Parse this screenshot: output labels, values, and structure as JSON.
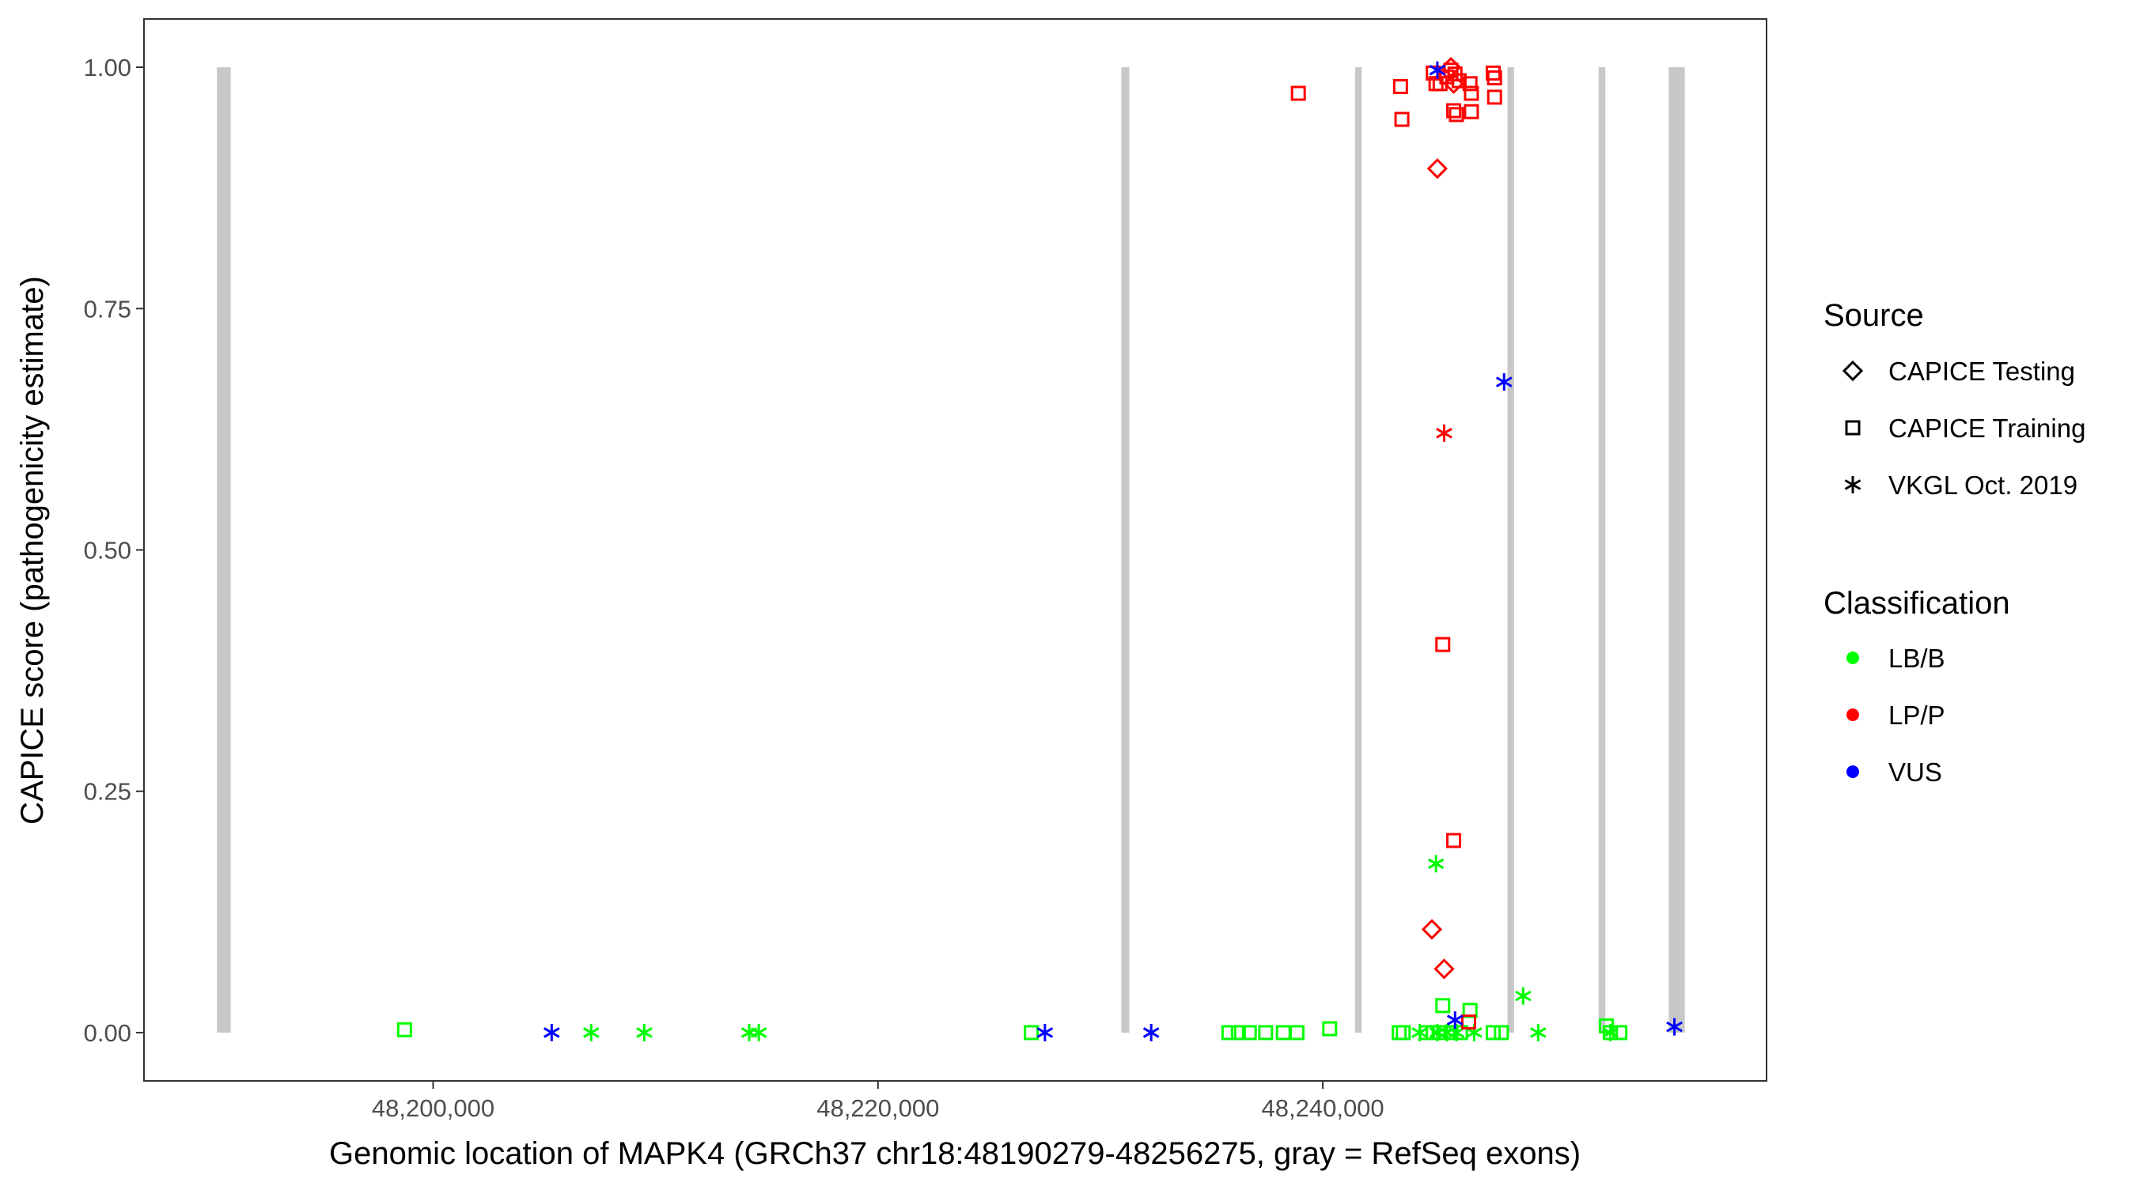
{
  "chart_data": {
    "type": "scatter",
    "xlabel": "Genomic location of MAPK4 (GRCh37 chr18:48190279-48256275, gray = RefSeq exons)",
    "ylabel": "CAPICE score (pathogenicity estimate)",
    "xlim": [
      48187000,
      48259950
    ],
    "ylim": [
      -0.05,
      1.05
    ],
    "x_ticks": [
      48200000,
      48220000,
      48240000
    ],
    "x_tick_labels": [
      "48,200,000",
      "48,220,000",
      "48,240,000"
    ],
    "y_ticks": [
      0,
      0.25,
      0.5,
      0.75,
      1.0
    ],
    "y_tick_labels": [
      "0.00",
      "0.25",
      "0.50",
      "0.75",
      "1.00"
    ],
    "grid": false,
    "exons": [
      [
        48190279,
        48190900
      ],
      [
        48230940,
        48231300
      ],
      [
        48241450,
        48241750
      ],
      [
        48248300,
        48248600
      ],
      [
        48252400,
        48252700
      ],
      [
        48255550,
        48256275
      ]
    ],
    "exon_color": "#C8C8C8",
    "legend": {
      "placement": "right",
      "source_title": "Source",
      "source_items": [
        {
          "label": "CAPICE Testing",
          "shape": "diamond"
        },
        {
          "label": "CAPICE Training",
          "shape": "square"
        },
        {
          "label": "VKGL Oct. 2019",
          "shape": "asterisk"
        }
      ],
      "class_title": "Classification",
      "class_items": [
        {
          "label": "LB/B",
          "color": "#00FF00"
        },
        {
          "label": "LP/P",
          "color": "#FF0000"
        },
        {
          "label": "VUS",
          "color": "#0000FF"
        }
      ]
    },
    "series": [
      {
        "name": "LB/B",
        "color": "#00FF00",
        "points": [
          {
            "x": 48198714,
            "y": 0.003,
            "source": "CAPICE Training"
          },
          {
            "x": 48226893,
            "y": 0.0,
            "source": "CAPICE Training"
          },
          {
            "x": 48235776,
            "y": 0.0,
            "source": "CAPICE Training"
          },
          {
            "x": 48236205,
            "y": 0.0,
            "source": "CAPICE Training"
          },
          {
            "x": 48236695,
            "y": 0.0,
            "source": "CAPICE Training"
          },
          {
            "x": 48237430,
            "y": 0.0,
            "source": "CAPICE Training"
          },
          {
            "x": 48238226,
            "y": 0.0,
            "source": "CAPICE Training"
          },
          {
            "x": 48238839,
            "y": 0.0,
            "source": "CAPICE Training"
          },
          {
            "x": 48240309,
            "y": 0.004,
            "source": "CAPICE Training"
          },
          {
            "x": 48243433,
            "y": 0.0,
            "source": "CAPICE Training"
          },
          {
            "x": 48243617,
            "y": 0.0,
            "source": "CAPICE Training"
          },
          {
            "x": 48244659,
            "y": 0.0,
            "source": "CAPICE Training"
          },
          {
            "x": 48244965,
            "y": 0.0,
            "source": "CAPICE Training"
          },
          {
            "x": 48245271,
            "y": 0.0,
            "source": "CAPICE Training"
          },
          {
            "x": 48245394,
            "y": 0.028,
            "source": "CAPICE Training"
          },
          {
            "x": 48245761,
            "y": 0.0,
            "source": "CAPICE Training"
          },
          {
            "x": 48246190,
            "y": 0.0,
            "source": "CAPICE Training"
          },
          {
            "x": 48246619,
            "y": 0.023,
            "source": "CAPICE Training"
          },
          {
            "x": 48247660,
            "y": 0.0,
            "source": "CAPICE Training"
          },
          {
            "x": 48248028,
            "y": 0.0,
            "source": "CAPICE Training"
          },
          {
            "x": 48252745,
            "y": 0.007,
            "source": "CAPICE Training"
          },
          {
            "x": 48252929,
            "y": 0.0,
            "source": "CAPICE Training"
          },
          {
            "x": 48253357,
            "y": 0.0,
            "source": "CAPICE Training"
          },
          {
            "x": 48207106,
            "y": 0.0,
            "source": "VKGL Oct. 2019"
          },
          {
            "x": 48209495,
            "y": 0.0,
            "source": "VKGL Oct. 2019"
          },
          {
            "x": 48214212,
            "y": 0.0,
            "source": "VKGL Oct. 2019"
          },
          {
            "x": 48214641,
            "y": 0.0,
            "source": "VKGL Oct. 2019"
          },
          {
            "x": 48244352,
            "y": 0.0,
            "source": "VKGL Oct. 2019"
          },
          {
            "x": 48245087,
            "y": 0.175,
            "source": "VKGL Oct. 2019"
          },
          {
            "x": 48245149,
            "y": 0.0,
            "source": "VKGL Oct. 2019"
          },
          {
            "x": 48245577,
            "y": 0.0,
            "source": "VKGL Oct. 2019"
          },
          {
            "x": 48246006,
            "y": 0.0,
            "source": "VKGL Oct. 2019"
          },
          {
            "x": 48246803,
            "y": 0.0,
            "source": "VKGL Oct. 2019"
          },
          {
            "x": 48249008,
            "y": 0.038,
            "source": "VKGL Oct. 2019"
          },
          {
            "x": 48249682,
            "y": 0.0,
            "source": "VKGL Oct. 2019"
          },
          {
            "x": 48252929,
            "y": 0.0,
            "source": "VKGL Oct. 2019"
          }
        ]
      },
      {
        "name": "LP/P",
        "color": "#FF0000",
        "points": [
          {
            "x": 48245149,
            "y": 0.895,
            "source": "CAPICE Testing"
          },
          {
            "x": 48244904,
            "y": 0.107,
            "source": "CAPICE Testing"
          },
          {
            "x": 48245455,
            "y": 0.066,
            "source": "CAPICE Testing"
          },
          {
            "x": 48245761,
            "y": 1.0,
            "source": "CAPICE Testing"
          },
          {
            "x": 48245884,
            "y": 0.983,
            "source": "CAPICE Testing"
          },
          {
            "x": 48238900,
            "y": 0.973,
            "source": "CAPICE Training"
          },
          {
            "x": 48243494,
            "y": 0.98,
            "source": "CAPICE Training"
          },
          {
            "x": 48243556,
            "y": 0.946,
            "source": "CAPICE Training"
          },
          {
            "x": 48245394,
            "y": 0.402,
            "source": "CAPICE Training"
          },
          {
            "x": 48245884,
            "y": 0.199,
            "source": "CAPICE Training"
          },
          {
            "x": 48246558,
            "y": 0.011,
            "source": "CAPICE Training"
          },
          {
            "x": 48244965,
            "y": 0.994,
            "source": "CAPICE Training"
          },
          {
            "x": 48245087,
            "y": 0.983,
            "source": "CAPICE Training"
          },
          {
            "x": 48245271,
            "y": 0.983,
            "source": "CAPICE Training"
          },
          {
            "x": 48245577,
            "y": 0.99,
            "source": "CAPICE Training"
          },
          {
            "x": 48245761,
            "y": 0.997,
            "source": "CAPICE Training"
          },
          {
            "x": 48245945,
            "y": 0.993,
            "source": "CAPICE Training"
          },
          {
            "x": 48246129,
            "y": 0.986,
            "source": "CAPICE Training"
          },
          {
            "x": 48245884,
            "y": 0.955,
            "source": "CAPICE Training"
          },
          {
            "x": 48246006,
            "y": 0.951,
            "source": "CAPICE Training"
          },
          {
            "x": 48246619,
            "y": 0.983,
            "source": "CAPICE Training"
          },
          {
            "x": 48246680,
            "y": 0.973,
            "source": "CAPICE Training"
          },
          {
            "x": 48246680,
            "y": 0.954,
            "source": "CAPICE Training"
          },
          {
            "x": 48247660,
            "y": 0.994,
            "source": "CAPICE Training"
          },
          {
            "x": 48247722,
            "y": 0.989,
            "source": "CAPICE Training"
          },
          {
            "x": 48247722,
            "y": 0.969,
            "source": "CAPICE Training"
          },
          {
            "x": 48245455,
            "y": 0.621,
            "source": "VKGL Oct. 2019"
          }
        ]
      },
      {
        "name": "VUS",
        "color": "#0000FF",
        "points": [
          {
            "x": 48205330,
            "y": 0.0,
            "source": "VKGL Oct. 2019"
          },
          {
            "x": 48227506,
            "y": 0.0,
            "source": "VKGL Oct. 2019"
          },
          {
            "x": 48232284,
            "y": 0.0,
            "source": "VKGL Oct. 2019"
          },
          {
            "x": 48245149,
            "y": 0.997,
            "source": "VKGL Oct. 2019"
          },
          {
            "x": 48248150,
            "y": 0.674,
            "source": "VKGL Oct. 2019"
          },
          {
            "x": 48245945,
            "y": 0.013,
            "source": "VKGL Oct. 2019"
          },
          {
            "x": 48255808,
            "y": 0.006,
            "source": "VKGL Oct. 2019"
          }
        ]
      }
    ]
  }
}
